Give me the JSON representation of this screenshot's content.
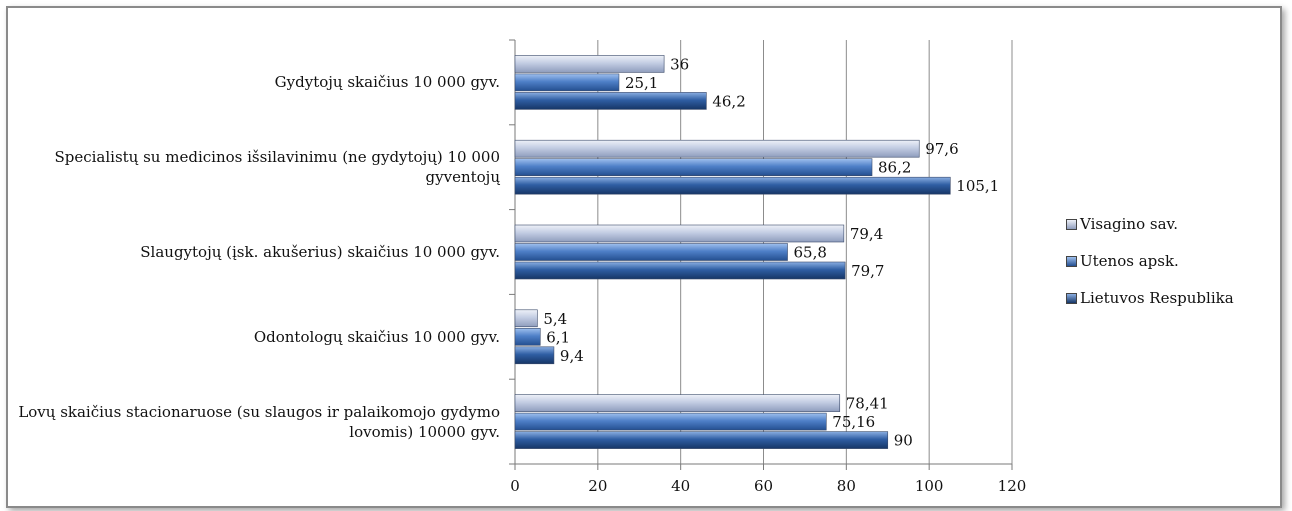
{
  "chart_data": {
    "type": "bar",
    "orientation": "horizontal",
    "categories": [
      "Gydytojų skaičius 10 000 gyv.",
      "Specialistų su medicinos išsilavinimu (ne gydytojų) 10 000 gyventojų",
      "Slaugytojų (įsk. akušerius) skaičius 10 000 gyv.",
      "Odontologų skaičius 10 000 gyv.",
      "Lovų skaičius stacionaruose (su slaugos ir palaikomojo gydymo lovomis) 10000 gyv."
    ],
    "series": [
      {
        "name": "Visagino sav.",
        "values": [
          36,
          97.6,
          79.4,
          5.4,
          78.41
        ],
        "labels": [
          "36",
          "97,6",
          "79,4",
          "5,4",
          "78,41"
        ],
        "color": "#b8c3db"
      },
      {
        "name": "Utenos apsk.",
        "values": [
          25.1,
          86.2,
          65.8,
          6.1,
          75.16
        ],
        "labels": [
          "25,1",
          "86,2",
          "65,8",
          "6,1",
          "75,16"
        ],
        "color": "#4f7fc4"
      },
      {
        "name": "Lietuvos Respublika",
        "values": [
          46.2,
          105.1,
          79.7,
          9.4,
          90
        ],
        "labels": [
          "46,2",
          "105,1",
          "79,7",
          "9,4",
          "90"
        ],
        "color": "#2c5596"
      }
    ],
    "xlim": [
      0,
      120
    ],
    "xticks": [
      "0",
      "20",
      "40",
      "60",
      "80",
      "100",
      "120"
    ],
    "grid": true,
    "legend_position": "right"
  }
}
